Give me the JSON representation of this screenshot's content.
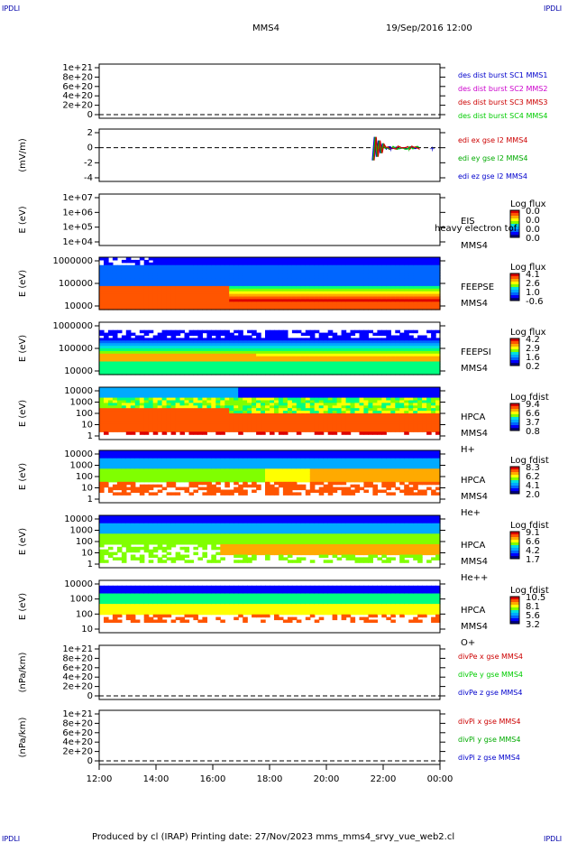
{
  "corner_label": "IPDLI",
  "header": {
    "spacecraft": "MMS4",
    "datetime": "19/Sep/2016 12:00"
  },
  "footer": "Produced by cl (IRAP)   Printing date: 27/Nov/2023   mms_mms4_srvy_vue_web2.cl",
  "time_axis": [
    "12:00",
    "14:00",
    "16:00",
    "18:00",
    "20:00",
    "22:00",
    "00:00"
  ],
  "chart_data": [
    {
      "type": "line",
      "ylabel": "",
      "yticks": [
        "1e+21",
        "8e+20",
        "6e+20",
        "4e+20",
        "2e+20",
        "0"
      ],
      "legend": [
        {
          "text": "des dist burst SC1 MMS1",
          "color": "#0000cc"
        },
        {
          "text": "des dist burst SC2 MMS2",
          "color": "#cc00cc"
        },
        {
          "text": "des dist burst SC3 MMS3",
          "color": "#cc0000"
        },
        {
          "text": "des dist burst SC4 MMS4",
          "color": "#00cc00"
        }
      ]
    },
    {
      "type": "line",
      "ylabel": "(mV/m)",
      "yticks": [
        "2",
        "0",
        "-2",
        "-4"
      ],
      "legend": [
        {
          "text": "edi ex gse l2 MMS4",
          "color": "#cc0000"
        },
        {
          "text": "edi ey gse l2 MMS4",
          "color": "#00aa00"
        },
        {
          "text": "edi ez gse l2 MMS4",
          "color": "#0000cc"
        }
      ]
    },
    {
      "type": "heatmap",
      "ylabel": "E (eV)",
      "yticks": [
        "1e+07",
        "1e+06",
        "1e+05",
        "1e+04"
      ],
      "instrument": [
        "EIS",
        "heavy electron tof",
        "MMS4"
      ],
      "colorbar_title": "Log flux",
      "colorbar_ticks": [
        "0.0",
        "0.0",
        "0.0",
        "0.0"
      ]
    },
    {
      "type": "heatmap",
      "ylabel": "E (eV)",
      "yticks": [
        "1000000",
        "100000",
        "10000"
      ],
      "instrument": [
        "FEEPSE",
        "MMS4"
      ],
      "colorbar_title": "Log flux",
      "colorbar_ticks": [
        "4.1",
        "2.6",
        "1.0",
        "-0.6"
      ]
    },
    {
      "type": "heatmap",
      "ylabel": "E (eV)",
      "yticks": [
        "1000000",
        "100000",
        "10000"
      ],
      "instrument": [
        "FEEPSI",
        "MMS4"
      ],
      "colorbar_title": "Log flux",
      "colorbar_ticks": [
        "4.2",
        "2.9",
        "1.6",
        "0.2"
      ]
    },
    {
      "type": "heatmap",
      "ylabel": "E (eV)",
      "yticks": [
        "10000",
        "1000",
        "100",
        "10",
        "1"
      ],
      "instrument": [
        "HPCA",
        "MMS4",
        "H+"
      ],
      "colorbar_title": "Log fdist",
      "colorbar_ticks": [
        "9.4",
        "6.6",
        "3.7",
        "0.8"
      ]
    },
    {
      "type": "heatmap",
      "ylabel": "E (eV)",
      "yticks": [
        "10000",
        "1000",
        "100",
        "10",
        "1"
      ],
      "instrument": [
        "HPCA",
        "MMS4",
        "He+"
      ],
      "colorbar_title": "Log fdist",
      "colorbar_ticks": [
        "8.3",
        "6.2",
        "4.1",
        "2.0"
      ]
    },
    {
      "type": "heatmap",
      "ylabel": "E (eV)",
      "yticks": [
        "10000",
        "1000",
        "100",
        "10",
        "1"
      ],
      "instrument": [
        "HPCA",
        "MMS4",
        "He++"
      ],
      "colorbar_title": "Log fdist",
      "colorbar_ticks": [
        "9.1",
        "6.6",
        "4.2",
        "1.7"
      ]
    },
    {
      "type": "heatmap",
      "ylabel": "E (eV)",
      "yticks": [
        "10000",
        "1000",
        "100",
        "10"
      ],
      "instrument": [
        "HPCA",
        "MMS4",
        "O+"
      ],
      "colorbar_title": "Log fdist",
      "colorbar_ticks": [
        "10.5",
        "8.1",
        "5.6",
        "3.2"
      ]
    },
    {
      "type": "line",
      "ylabel": "(nPa/km)",
      "yticks": [
        "1e+21",
        "8e+20",
        "6e+20",
        "4e+20",
        "2e+20",
        "0"
      ],
      "legend": [
        {
          "text": "divPe x gse MMS4",
          "color": "#cc0000"
        },
        {
          "text": "divPe y gse MMS4",
          "color": "#00cc00"
        },
        {
          "text": "divPe z gse MMS4",
          "color": "#0000cc"
        }
      ]
    },
    {
      "type": "line",
      "ylabel": "(nPa/km)",
      "yticks": [
        "1e+21",
        "8e+20",
        "6e+20",
        "4e+20",
        "2e+20",
        "0"
      ],
      "legend": [
        {
          "text": "divPi x gse MMS4",
          "color": "#cc0000"
        },
        {
          "text": "divPi y gse MMS4",
          "color": "#00aa00"
        },
        {
          "text": "divPi z gse MMS4",
          "color": "#0000cc"
        }
      ]
    }
  ]
}
